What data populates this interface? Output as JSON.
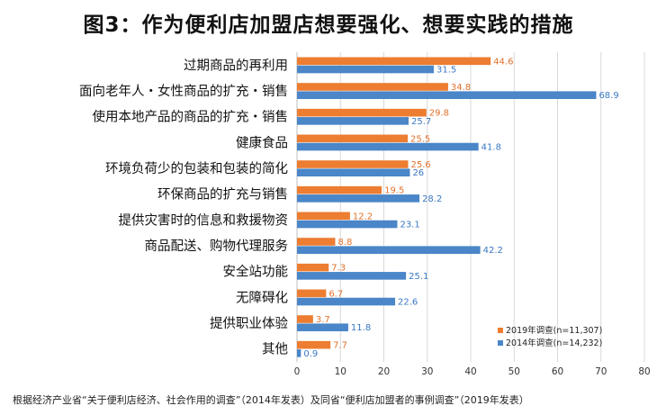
{
  "title": "图3：作为便利店加盟店想要强化、想要实践的措施",
  "footnote": "根据经济产业省“关于便利店经济、社会作用的调查”（2014年发表）及同省“便利店加盟者的事例调查”（2019年发表）",
  "colors": {
    "s2019": "#ED7D31",
    "s2014": "#4A86C8",
    "grid": "#d9d9d9"
  },
  "chart_data": {
    "type": "bar",
    "orientation": "horizontal",
    "categories": [
      "过期商品的再利用",
      "面向老年人・女性商品的扩充・销售",
      "使用本地产品的商品的扩充・销售",
      "健康食品",
      "环境负荷少的包装和包装的简化",
      "环保商品的扩充与销售",
      "提供灾害时的信息和救援物资",
      "商品配送、购物代理服务",
      "安全站功能",
      "无障碍化",
      "提供职业体验",
      "其他"
    ],
    "series": [
      {
        "name": "2019年调查(n=11,307)",
        "values": [
          44.6,
          34.8,
          29.8,
          25.5,
          25.6,
          19.5,
          12.2,
          8.8,
          7.3,
          6.7,
          3.7,
          7.7
        ]
      },
      {
        "name": "2014年调查(n=14,232)",
        "values": [
          31.5,
          68.9,
          25.7,
          41.8,
          26,
          28.2,
          23.1,
          42.2,
          25.1,
          22.6,
          11.8,
          0.9
        ]
      }
    ],
    "xlim": [
      0,
      80
    ],
    "xticks": [
      0,
      10,
      20,
      30,
      40,
      50,
      60,
      70,
      80
    ],
    "grid": true,
    "legend_position": "bottom-right"
  }
}
